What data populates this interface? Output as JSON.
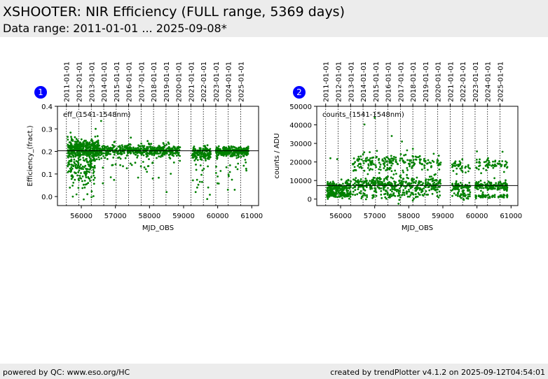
{
  "header": {
    "title": "XSHOOTER: NIR Efficiency (FULL range, 5369 days)",
    "subtitle": "Data range: 2011-01-01 ... 2025-09-08*"
  },
  "footer": {
    "left": "powered by QC: www.eso.org/HC",
    "right": "created by trendPlotter v4.1.2 on 2025-09-12T04:54:01"
  },
  "colors": {
    "points": "#008000",
    "marker": "#0000ff",
    "header_bg": "#ececec"
  },
  "chart_data": [
    {
      "type": "scatter",
      "badge": "1",
      "label": "eff_(1541-1548nm)",
      "xlabel": "MJD_OBS",
      "ylabel": "Efficiency_(fract.)",
      "xlim": [
        55300,
        61200
      ],
      "ylim": [
        -0.04,
        0.4
      ],
      "xticks": [
        56000,
        57000,
        58000,
        59000,
        60000,
        61000
      ],
      "yticks": [
        0.0,
        0.1,
        0.2,
        0.3,
        0.4
      ],
      "ytick_labels": [
        "0.0",
        "0.1",
        "0.2",
        "0.3",
        "0.4"
      ],
      "reference_line": 0.203,
      "date_ticks": [
        {
          "label": "2011-01-01",
          "mjd": 55562
        },
        {
          "label": "2012-01-01",
          "mjd": 55927
        },
        {
          "label": "2013-01-01",
          "mjd": 56293
        },
        {
          "label": "2014-01-01",
          "mjd": 56658
        },
        {
          "label": "2015-01-01",
          "mjd": 57023
        },
        {
          "label": "2016-01-01",
          "mjd": 57388
        },
        {
          "label": "2017-01-01",
          "mjd": 57754
        },
        {
          "label": "2018-01-01",
          "mjd": 58119
        },
        {
          "label": "2019-01-01",
          "mjd": 58484
        },
        {
          "label": "2020-01-01",
          "mjd": 58849
        },
        {
          "label": "2021-01-01",
          "mjd": 59215
        },
        {
          "label": "2022-01-01",
          "mjd": 59580
        },
        {
          "label": "2023-01-01",
          "mjd": 59945
        },
        {
          "label": "2024-01-01",
          "mjd": 60310
        },
        {
          "label": "2025-01-01",
          "mjd": 60676
        }
      ],
      "clusters": [
        {
          "x": [
            55600,
            56550
          ],
          "y": 0.21,
          "spread": 0.02,
          "n": 380
        },
        {
          "x": [
            55600,
            56400
          ],
          "y": 0.13,
          "spread": 0.05,
          "n": 200
        },
        {
          "x": [
            56550,
            58900
          ],
          "y": 0.205,
          "spread": 0.012,
          "n": 430
        },
        {
          "x": [
            56550,
            58900
          ],
          "y": 0.15,
          "spread": 0.05,
          "n": 70
        },
        {
          "x": [
            59250,
            59800
          ],
          "y": 0.19,
          "spread": 0.015,
          "n": 140
        },
        {
          "x": [
            59250,
            59800
          ],
          "y": 0.12,
          "spread": 0.05,
          "n": 25
        },
        {
          "x": [
            59950,
            60900
          ],
          "y": 0.2,
          "spread": 0.01,
          "n": 300
        },
        {
          "x": [
            59950,
            60900
          ],
          "y": 0.12,
          "spread": 0.05,
          "n": 25
        }
      ],
      "outliers": [
        [
          56580,
          0.335
        ],
        [
          56420,
          0.3
        ],
        [
          55700,
          0.265
        ],
        [
          58500,
          0.02
        ],
        [
          56100,
          0.04
        ],
        [
          60300,
          0.03
        ],
        [
          59400,
          0.04
        ],
        [
          55750,
          0.0
        ],
        [
          60500,
          0.03
        ]
      ]
    },
    {
      "type": "scatter",
      "badge": "2",
      "label": "counts_(1541-1548nm)",
      "xlabel": "MJD_OBS",
      "ylabel": "counts / ADU",
      "xlim": [
        55300,
        61200
      ],
      "ylim": [
        -3500,
        50000
      ],
      "xticks": [
        56000,
        57000,
        58000,
        59000,
        60000,
        61000
      ],
      "yticks": [
        0,
        10000,
        20000,
        30000,
        40000,
        50000
      ],
      "ytick_labels": [
        "0",
        "10000",
        "20000",
        "30000",
        "40000",
        "50000"
      ],
      "reference_line": 7300,
      "date_ticks": [
        {
          "label": "2011-01-01",
          "mjd": 55562
        },
        {
          "label": "2012-01-01",
          "mjd": 55927
        },
        {
          "label": "2013-01-01",
          "mjd": 56293
        },
        {
          "label": "2014-01-01",
          "mjd": 56658
        },
        {
          "label": "2015-01-01",
          "mjd": 57023
        },
        {
          "label": "2016-01-01",
          "mjd": 57388
        },
        {
          "label": "2017-01-01",
          "mjd": 57754
        },
        {
          "label": "2018-01-01",
          "mjd": 58119
        },
        {
          "label": "2019-01-01",
          "mjd": 58484
        },
        {
          "label": "2020-01-01",
          "mjd": 58849
        },
        {
          "label": "2021-01-01",
          "mjd": 59215
        },
        {
          "label": "2022-01-01",
          "mjd": 59580
        },
        {
          "label": "2023-01-01",
          "mjd": 59945
        },
        {
          "label": "2024-01-01",
          "mjd": 60310
        },
        {
          "label": "2025-01-01",
          "mjd": 60676
        }
      ],
      "clusters": [
        {
          "x": [
            55600,
            56300
          ],
          "y": 6500,
          "spread": 1500,
          "n": 160
        },
        {
          "x": [
            55600,
            56300
          ],
          "y": 2300,
          "spread": 900,
          "n": 120
        },
        {
          "x": [
            56350,
            58950
          ],
          "y": 7500,
          "spread": 2200,
          "n": 380
        },
        {
          "x": [
            56350,
            58950
          ],
          "y": 20000,
          "spread": 2500,
          "n": 220
        },
        {
          "x": [
            56350,
            58950
          ],
          "y": 2500,
          "spread": 1400,
          "n": 80
        },
        {
          "x": [
            59250,
            59800
          ],
          "y": 6500,
          "spread": 1500,
          "n": 70
        },
        {
          "x": [
            59250,
            59800
          ],
          "y": 17500,
          "spread": 1500,
          "n": 35
        },
        {
          "x": [
            59250,
            59800
          ],
          "y": 2000,
          "spread": 800,
          "n": 30
        },
        {
          "x": [
            59950,
            60900
          ],
          "y": 7000,
          "spread": 1200,
          "n": 160
        },
        {
          "x": [
            59950,
            60900
          ],
          "y": 18500,
          "spread": 1800,
          "n": 55
        },
        {
          "x": [
            59950,
            60900
          ],
          "y": 1500,
          "spread": 500,
          "n": 60
        }
      ],
      "outliers": [
        [
          57000,
          43800
        ],
        [
          56700,
          40200
        ],
        [
          57500,
          34000
        ],
        [
          57800,
          31000
        ],
        [
          55700,
          22000
        ],
        [
          55900,
          21500
        ],
        [
          60750,
          25500
        ],
        [
          60000,
          25700
        ],
        [
          57700,
          -2500
        ]
      ]
    }
  ]
}
